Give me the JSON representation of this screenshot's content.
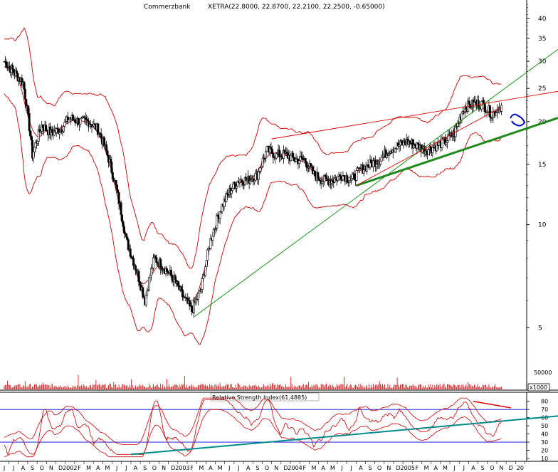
{
  "chart_data": [
    {
      "type": "candlestick",
      "title": "Commerzbank",
      "subtitle": "XETRA(22.8000, 22.8700, 22.2100, 22.2500, -0.65000)",
      "y_scale": "log",
      "ylim": [
        3.5,
        44
      ],
      "y_ticks": [
        40,
        35,
        30,
        25,
        20,
        15,
        10,
        5
      ],
      "volume_tick_label": "50000",
      "volume_scale_label": "x1000",
      "x_tick_labels": [
        "J",
        "J",
        "A",
        "S",
        "O",
        "N",
        "D",
        "2002",
        "F",
        "M",
        "A",
        "M",
        "J",
        "J",
        "A",
        "S",
        "O",
        "N",
        "D",
        "2003",
        "F",
        "M",
        "A",
        "M",
        "J",
        "J",
        "A",
        "S",
        "O",
        "N",
        "D",
        "2004",
        "F",
        "M",
        "A",
        "M",
        "J",
        "J",
        "A",
        "S",
        "O",
        "N",
        "D",
        "2005",
        "F",
        "M",
        "A",
        "M",
        "J",
        "J",
        "A",
        "S",
        "O",
        "N",
        "D",
        "20"
      ],
      "close_approx": [
        {
          "date": "2001-06",
          "close": 30.0
        },
        {
          "date": "2001-07",
          "close": 28.0
        },
        {
          "date": "2001-08",
          "close": 26.0
        },
        {
          "date": "2001-09",
          "close": 16.0
        },
        {
          "date": "2001-10",
          "close": 19.5
        },
        {
          "date": "2001-11",
          "close": 18.5
        },
        {
          "date": "2001-12",
          "close": 19.0
        },
        {
          "date": "2002-01",
          "close": 20.5
        },
        {
          "date": "2002-02",
          "close": 20.0
        },
        {
          "date": "2002-03",
          "close": 20.0
        },
        {
          "date": "2002-04",
          "close": 19.0
        },
        {
          "date": "2002-05",
          "close": 16.0
        },
        {
          "date": "2002-06",
          "close": 12.5
        },
        {
          "date": "2002-07",
          "close": 9.0
        },
        {
          "date": "2002-08",
          "close": 7.5
        },
        {
          "date": "2002-09",
          "close": 6.0
        },
        {
          "date": "2002-10",
          "close": 8.0
        },
        {
          "date": "2002-11",
          "close": 7.5
        },
        {
          "date": "2002-12",
          "close": 7.0
        },
        {
          "date": "2003-01",
          "close": 6.2
        },
        {
          "date": "2003-02",
          "close": 5.6
        },
        {
          "date": "2003-03",
          "close": 6.5
        },
        {
          "date": "2003-04",
          "close": 9.0
        },
        {
          "date": "2003-05",
          "close": 11.0
        },
        {
          "date": "2003-06",
          "close": 12.5
        },
        {
          "date": "2003-07",
          "close": 13.5
        },
        {
          "date": "2003-08",
          "close": 13.5
        },
        {
          "date": "2003-09",
          "close": 14.0
        },
        {
          "date": "2003-10",
          "close": 16.5
        },
        {
          "date": "2003-11",
          "close": 16.0
        },
        {
          "date": "2003-12",
          "close": 16.0
        },
        {
          "date": "2004-01",
          "close": 15.5
        },
        {
          "date": "2004-02",
          "close": 15.5
        },
        {
          "date": "2004-03",
          "close": 14.0
        },
        {
          "date": "2004-04",
          "close": 13.5
        },
        {
          "date": "2004-05",
          "close": 13.5
        },
        {
          "date": "2004-06",
          "close": 14.0
        },
        {
          "date": "2004-07",
          "close": 13.5
        },
        {
          "date": "2004-08",
          "close": 14.5
        },
        {
          "date": "2004-09",
          "close": 15.0
        },
        {
          "date": "2004-10",
          "close": 15.5
        },
        {
          "date": "2004-11",
          "close": 16.5
        },
        {
          "date": "2004-12",
          "close": 17.0
        },
        {
          "date": "2005-01",
          "close": 17.5
        },
        {
          "date": "2005-02",
          "close": 17.0
        },
        {
          "date": "2005-03",
          "close": 16.5
        },
        {
          "date": "2005-04",
          "close": 17.0
        },
        {
          "date": "2005-05",
          "close": 17.5
        },
        {
          "date": "2005-06",
          "close": 18.5
        },
        {
          "date": "2005-07",
          "close": 22.0
        },
        {
          "date": "2005-08",
          "close": 22.5
        },
        {
          "date": "2005-09",
          "close": 22.5
        },
        {
          "date": "2005-10",
          "close": 21.0
        },
        {
          "date": "2005-11",
          "close": 22.3
        }
      ],
      "overlays": [
        "bollinger-bands",
        "trendlines"
      ],
      "colors": {
        "price": "#000000",
        "bands": "#cc0000",
        "trend_green": "#008800",
        "trend_thick": "#1e8a1e",
        "trend_red": "#dd0000",
        "annotation": "#0000cc",
        "volume": "#cc0000"
      },
      "grid": false
    },
    {
      "type": "line",
      "title": "Relative Strength Index(61.4885)",
      "ylim": [
        10,
        85
      ],
      "y_ticks": [
        80,
        70,
        60,
        50,
        40,
        30,
        20,
        10
      ],
      "reference_lines": [
        70,
        30
      ],
      "colors": {
        "rsi": "#cc0000",
        "reference": "#0000cc",
        "trend": "#008b8b"
      }
    }
  ]
}
